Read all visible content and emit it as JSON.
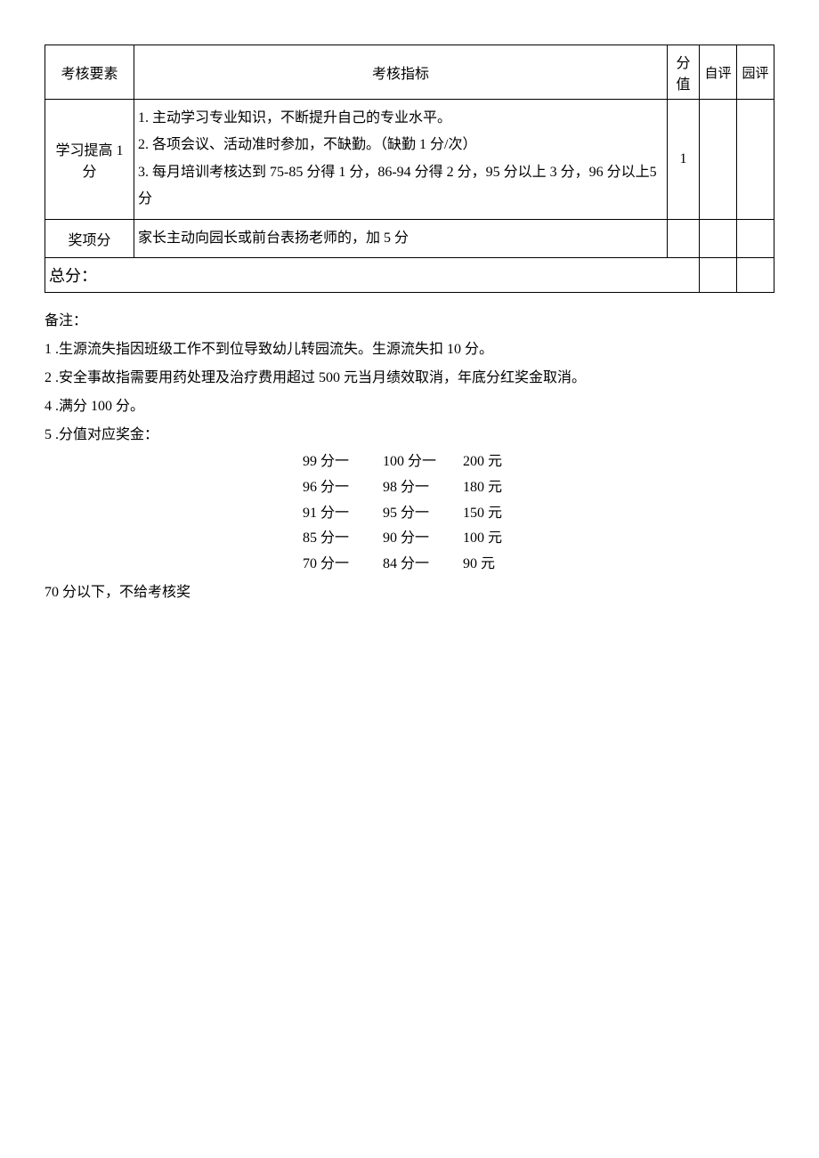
{
  "table": {
    "headers": {
      "element": "考核要素",
      "indicator": "考核指标",
      "score": "分值",
      "self": "自评",
      "garden": "园评"
    },
    "rows": [
      {
        "element": "学习提高 1分",
        "criteria_lines": [
          "1. 主动学习专业知识，不断提升自己的专业水平。",
          "2. 各项会议、活动准时参加，不缺勤。（缺勤 1 分/次）",
          "3. 每月培训考核达到 75-85 分得 1 分，86-94 分得 2 分，95 分以上 3 分，96 分以上5 分"
        ],
        "score": "1",
        "self": "",
        "garden": ""
      },
      {
        "element": "奖项分",
        "criteria_lines": [
          "家长主动向园长或前台表扬老师的，加 5 分"
        ],
        "score": "",
        "self": "",
        "garden": ""
      }
    ],
    "total_label": "总分：",
    "total_self": "",
    "total_garden": ""
  },
  "notes": {
    "heading": "备注：",
    "items": [
      "1  .生源流失指因班级工作不到位导致幼儿转园流失。生源流失扣 10 分。",
      "2  .安全事故指需要用药处理及治疗费用超过 500 元当月绩效取消，年底分红奖金取消。",
      "4  .满分 100 分。",
      "5  .分值对应奖金："
    ]
  },
  "bonus_table": {
    "rows": [
      {
        "from": "99 分一",
        "to": "100 分一",
        "amount": "200 元"
      },
      {
        "from": "96 分一",
        "to": "98 分一",
        "amount": "180 元"
      },
      {
        "from": "91 分一",
        "to": "95 分一",
        "amount": "150 元"
      },
      {
        "from": "85 分一",
        "to": "90 分一",
        "amount": "100 元"
      },
      {
        "from": "70 分一",
        "to": "84 分一",
        "amount": "90 元"
      }
    ],
    "below": "70 分以下，不给考核奖"
  }
}
